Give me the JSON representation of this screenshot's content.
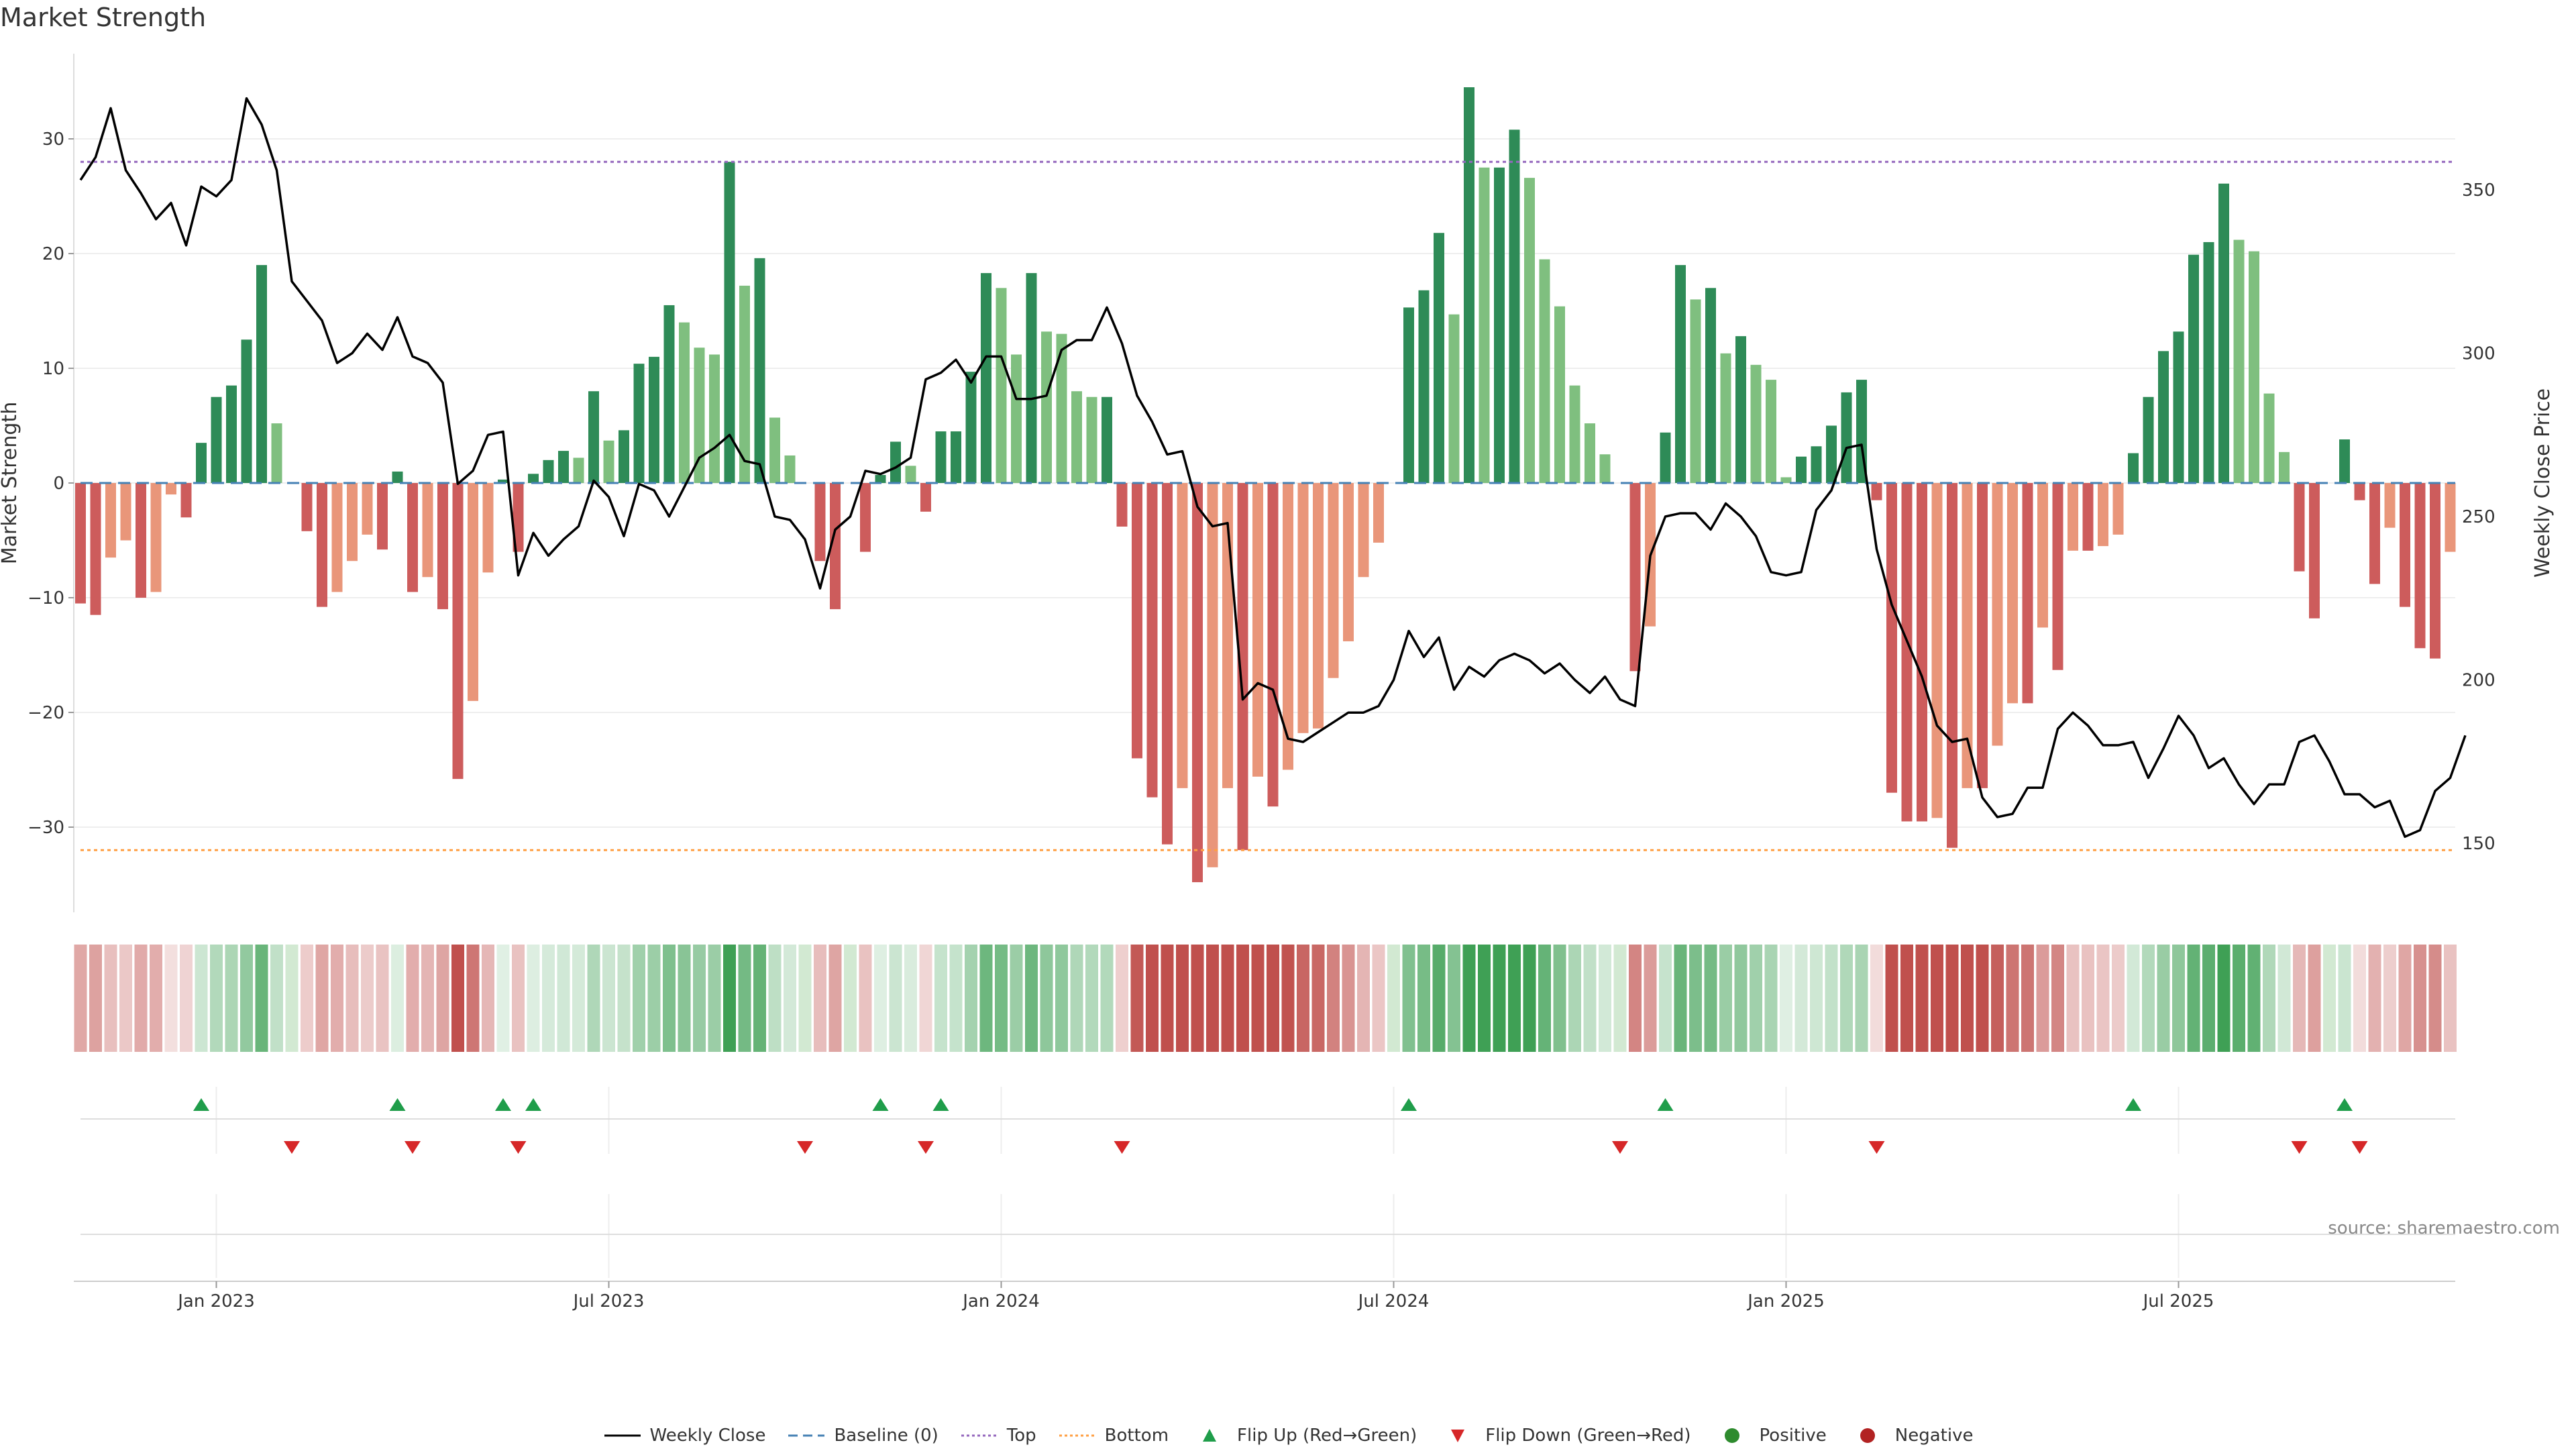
{
  "chart_data": {
    "type": "bar",
    "title": "Market Strength",
    "ylabel_left": "Market Strength",
    "ylabel_right": "Weekly Close Price",
    "ylim_left": [
      -37.5,
      37
    ],
    "ylim_right": [
      130,
      380
    ],
    "yticks_left": [
      30,
      20,
      10,
      0,
      -10,
      -20,
      -30
    ],
    "yticks_right": [
      350,
      300,
      250,
      200,
      150
    ],
    "top_line": 28,
    "bottom_line": -32,
    "x_tick_labels": [
      "Jan 2023",
      "Jul 2023",
      "Jan 2024",
      "Jul 2024",
      "Jan 2025",
      "Jul 2025"
    ],
    "x_tick_weeks": [
      9,
      35,
      61,
      87,
      113,
      139
    ],
    "strength": [
      -10.5,
      -11.5,
      -6.5,
      -5,
      -10,
      -9.5,
      -1,
      -3,
      3.5,
      7.5,
      8.5,
      12.5,
      19,
      5.2,
      0,
      -4.2,
      -10.8,
      -9.5,
      -6.8,
      -4.5,
      -5.8,
      1,
      -9.5,
      -8.2,
      -11,
      -25.8,
      -19,
      -7.8,
      0.3,
      -6,
      0.8,
      2,
      2.8,
      2.2,
      8,
      3.7,
      4.6,
      10.4,
      11,
      15.5,
      14,
      11.8,
      11.2,
      28,
      17.2,
      19.6,
      5.7,
      2.4,
      0,
      -6.8,
      -11,
      0,
      -6,
      0.7,
      3.6,
      1.5,
      -2.5,
      4.5,
      4.5,
      9.7,
      18.3,
      17,
      11.2,
      18.3,
      13.2,
      13,
      8,
      7.5,
      7.5,
      -3.8,
      -24,
      -27.4,
      -31.5,
      -26.6,
      -34.8,
      -33.5,
      -26.6,
      -32,
      -25.6,
      -28.2,
      -25,
      -21.8,
      -21.4,
      -17,
      -13.8,
      -8.2,
      -5.2,
      0,
      15.3,
      16.8,
      21.8,
      14.7,
      34.5,
      27.5,
      27.5,
      30.8,
      26.6,
      19.5,
      15.4,
      8.5,
      5.2,
      2.5,
      0,
      -16.4,
      -12.5,
      4.4,
      19,
      16,
      17,
      11.3,
      12.8,
      10.3,
      9,
      0.5,
      2.3,
      3.2,
      5,
      7.9,
      9,
      -1.5,
      -27,
      -29.5,
      -29.5,
      -29.2,
      -31.8,
      -26.6,
      -26.6,
      -22.9,
      -19.2,
      -19.2,
      -12.6,
      -16.3,
      -5.9,
      -5.9,
      -5.5,
      -4.5,
      2.6,
      7.5,
      11.5,
      13.2,
      19.9,
      21,
      26.1,
      21.2,
      20.2,
      7.8,
      2.7,
      -7.7,
      -11.8,
      0,
      3.8,
      -1.5,
      -8.8,
      -3.9,
      -10.8,
      -14.4,
      -15.3,
      -6
    ],
    "price": [
      353,
      360,
      375,
      356,
      349,
      341,
      346,
      333,
      351,
      348,
      353,
      378,
      370,
      356,
      322,
      316,
      310,
      297,
      300,
      306,
      301,
      311,
      299,
      297,
      291,
      260,
      264,
      275,
      276,
      232,
      245,
      238,
      243,
      247,
      261,
      256,
      244,
      260,
      258,
      250,
      259,
      268,
      271,
      275,
      267,
      266,
      250,
      249,
      243,
      228,
      246,
      250,
      264,
      263,
      265,
      268,
      292,
      294,
      298,
      291,
      299,
      299,
      286,
      286,
      287,
      301,
      304,
      304,
      314,
      303,
      287,
      279,
      269,
      270,
      253,
      247,
      248,
      194,
      199,
      197,
      182,
      181,
      184,
      187,
      190,
      190,
      192,
      200,
      215,
      207,
      213,
      197,
      204,
      201,
      206,
      208,
      206,
      202,
      205,
      200,
      196,
      201,
      194,
      192,
      238,
      250,
      251,
      251,
      246,
      254,
      250,
      244,
      233,
      232,
      233,
      252,
      258,
      271,
      272,
      240,
      223,
      212,
      201,
      186,
      181,
      182,
      164,
      158,
      159,
      167,
      167,
      185,
      190,
      186,
      180,
      180,
      181,
      170,
      179,
      189,
      183,
      173,
      176,
      168,
      162,
      168,
      168,
      181,
      183,
      175,
      165,
      165,
      161,
      163,
      152,
      154,
      166,
      170,
      183
    ]
  },
  "legend": {
    "weekly_close": "Weekly Close",
    "baseline": "Baseline (0)",
    "top": "Top",
    "bottom": "Bottom",
    "flip_up": "Flip Up (Red→Green)",
    "flip_down": "Flip Down (Green→Red)",
    "positive": "Positive",
    "negative": "Negative"
  },
  "source": "source: sharemaestro.com",
  "colors": {
    "positive_dark": "#2e8b57",
    "positive_light": "#7fbf7f",
    "negative_dark": "#cd5c5c",
    "negative_light": "#e9967a",
    "top_line": "#9467bd",
    "bottom_line": "#ff9f43",
    "baseline": "#4682b4",
    "price_line": "#000000",
    "flip_up": "#1f9d4a",
    "flip_down": "#d62728",
    "positive_dot": "#2e8b2e",
    "negative_dot": "#b22222"
  }
}
